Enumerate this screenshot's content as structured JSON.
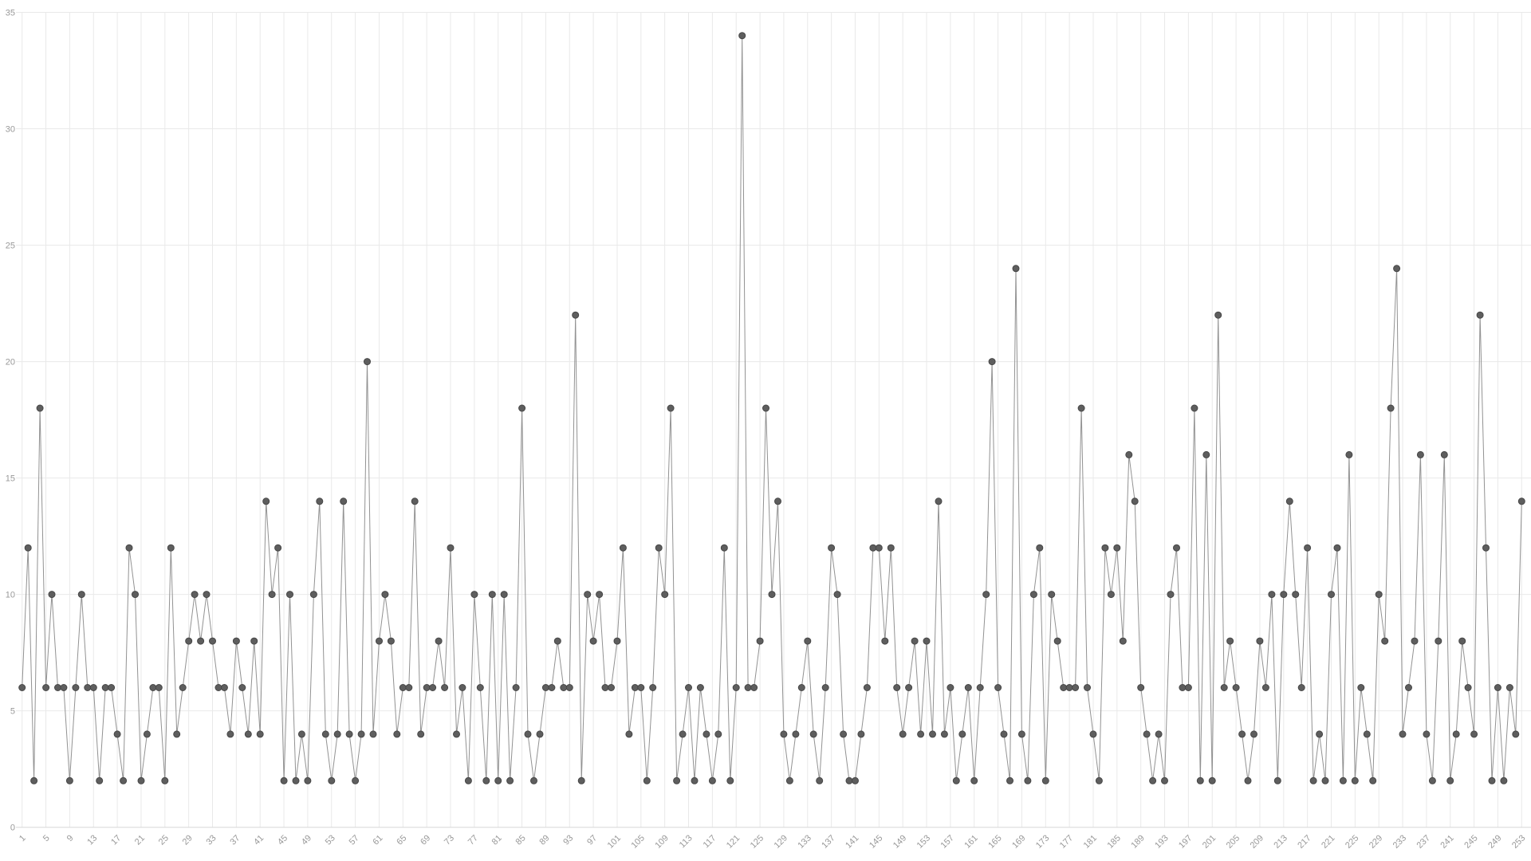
{
  "chart_data": {
    "type": "line",
    "title": "",
    "xlabel": "",
    "ylabel": "",
    "ylim": [
      0,
      35
    ],
    "y_ticks": [
      0,
      5,
      10,
      15,
      20,
      25,
      30,
      35
    ],
    "n_points": 253,
    "x_label_every": 4,
    "x_tick_labels": [
      "1",
      "5",
      "9",
      "13",
      "17",
      "21",
      "25",
      "29",
      "33",
      "37",
      "41",
      "45",
      "49",
      "53",
      "57",
      "61",
      "65",
      "69",
      "73",
      "77",
      "81",
      "85",
      "89",
      "93",
      "97",
      "101",
      "105",
      "109",
      "113",
      "117",
      "121",
      "125",
      "129",
      "133",
      "137",
      "141",
      "145",
      "149",
      "153",
      "157",
      "161",
      "165",
      "169",
      "173",
      "177",
      "181",
      "185",
      "189",
      "193",
      "197",
      "201",
      "205",
      "209",
      "213",
      "217",
      "221",
      "225",
      "229",
      "233",
      "237",
      "241",
      "245",
      "249",
      "253"
    ],
    "values": [
      6,
      12,
      2,
      18,
      6,
      10,
      6,
      6,
      2,
      6,
      10,
      6,
      6,
      2,
      6,
      6,
      4,
      2,
      12,
      10,
      2,
      4,
      6,
      6,
      2,
      12,
      4,
      6,
      8,
      10,
      8,
      10,
      8,
      6,
      6,
      4,
      8,
      6,
      4,
      8,
      4,
      14,
      10,
      12,
      2,
      10,
      2,
      4,
      2,
      10,
      14,
      4,
      2,
      4,
      14,
      4,
      2,
      4,
      20,
      4,
      8,
      10,
      8,
      4,
      6,
      6,
      14,
      4,
      6,
      6,
      8,
      6,
      12,
      4,
      6,
      2,
      10,
      6,
      2,
      10,
      2,
      10,
      2,
      6,
      18,
      4,
      2,
      4,
      6,
      6,
      8,
      6,
      6,
      22,
      2,
      10,
      8,
      10,
      6,
      6,
      8,
      12,
      4,
      6,
      6,
      2,
      6,
      12,
      10,
      18,
      2,
      4,
      6,
      2,
      6,
      4,
      2,
      4,
      12,
      2,
      6,
      34,
      6,
      6,
      8,
      18,
      10,
      14,
      4,
      2,
      4,
      6,
      8,
      4,
      2,
      6,
      12,
      10,
      4,
      2,
      2,
      4,
      6,
      12,
      12,
      8,
      12,
      6,
      4,
      6,
      8,
      4,
      8,
      4,
      14,
      4,
      6,
      2,
      4,
      6,
      2,
      6,
      10,
      20,
      6,
      4,
      2,
      24,
      4,
      2,
      10,
      12,
      2,
      10,
      8,
      6,
      6,
      6,
      18,
      6,
      4,
      2,
      12,
      10,
      12,
      8,
      16,
      14,
      6,
      4,
      2,
      4,
      2,
      10,
      12,
      6,
      6,
      18,
      2,
      16,
      2,
      22,
      6,
      8,
      6,
      4,
      2,
      4,
      8,
      6,
      10,
      2,
      10,
      14,
      10,
      6,
      12,
      2,
      4,
      2,
      10,
      12,
      2,
      16,
      2,
      6,
      4,
      2,
      10,
      8,
      18,
      24,
      4,
      6,
      8,
      16,
      4,
      2,
      8,
      16,
      2,
      4,
      8,
      6,
      4,
      22,
      12,
      2,
      6,
      2,
      6,
      4,
      14
    ],
    "grid": true,
    "legend": false,
    "marker": "circle",
    "colors": {
      "background": "#ffffff",
      "line": "#929292",
      "point_fill": "#5e5e5e",
      "point_stroke": "#474747",
      "grid": "#e9e9e9",
      "axis": "#d8d8d8",
      "tick_text": "#999999"
    }
  }
}
